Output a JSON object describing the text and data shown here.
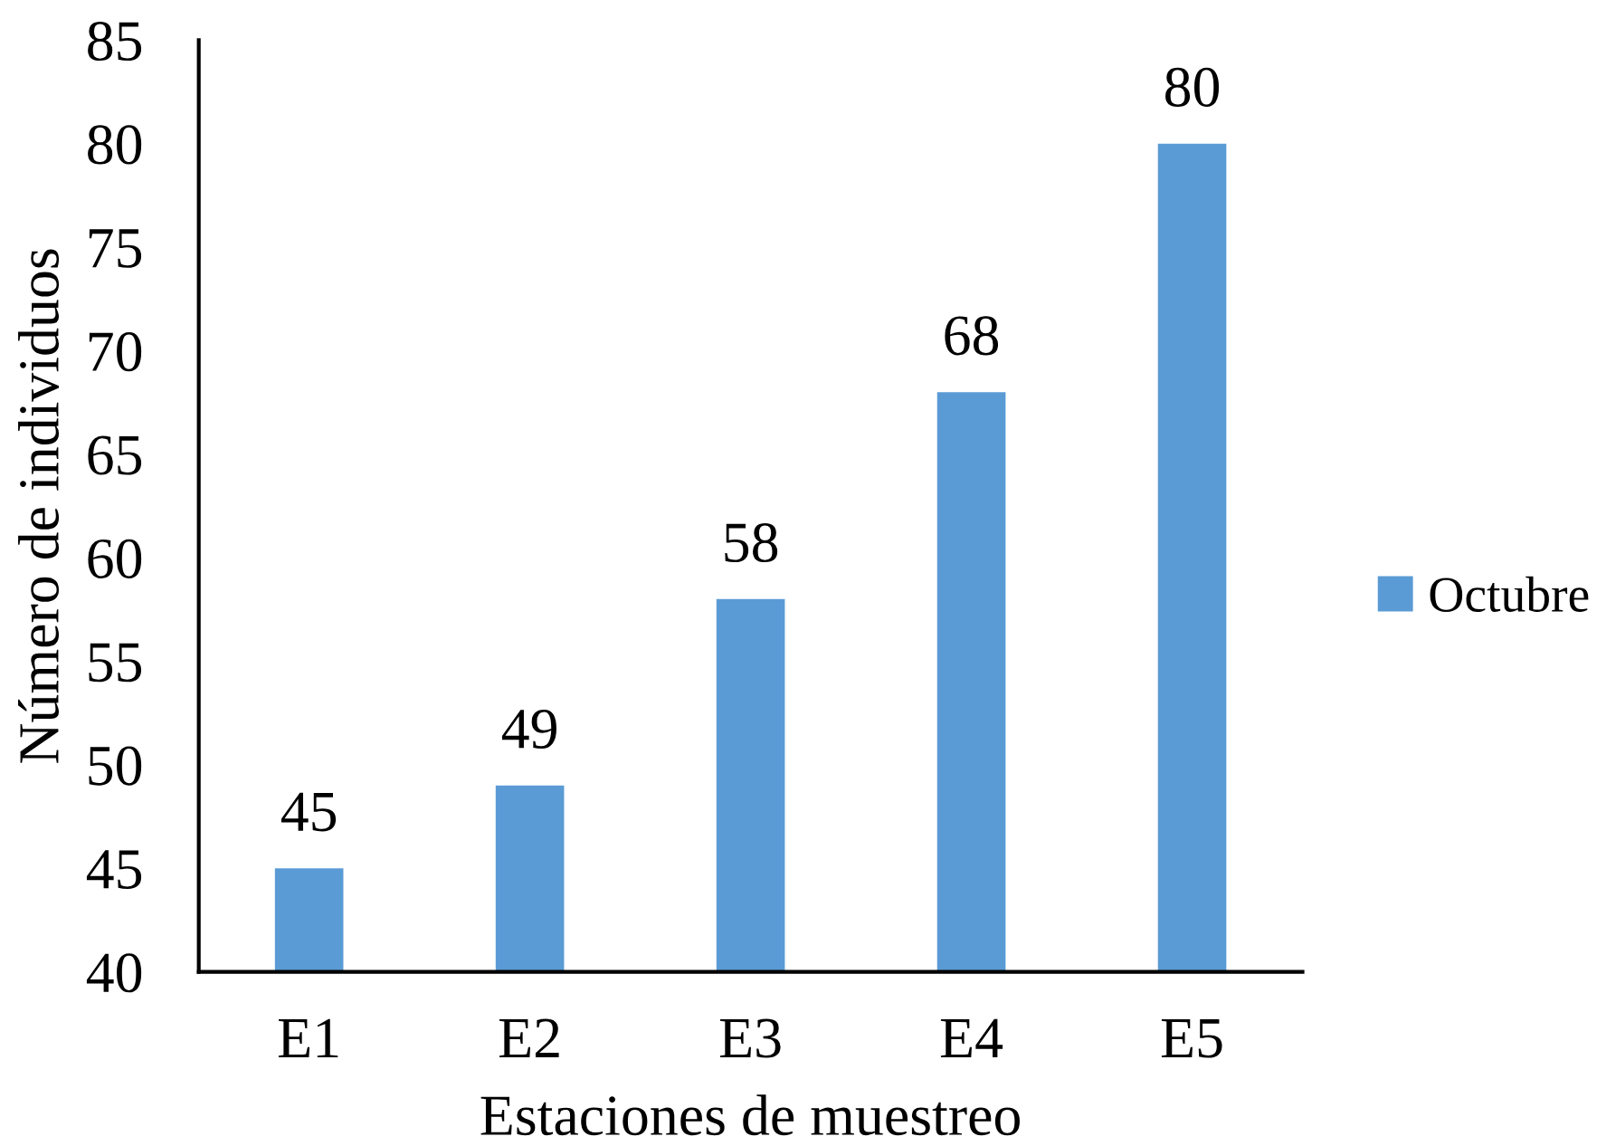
{
  "chart_data": {
    "type": "bar",
    "xlabel": "Estaciones de muestreo",
    "ylabel": "Número de individuos",
    "categories": [
      "E1",
      "E2",
      "E3",
      "E4",
      "E5"
    ],
    "series": [
      {
        "name": "Octubre",
        "color": "#5b9bd5",
        "values": [
          45,
          49,
          58,
          68,
          80
        ]
      }
    ],
    "ylim": [
      40,
      85
    ],
    "yticks": [
      40,
      45,
      50,
      55,
      60,
      65,
      70,
      75,
      80,
      85
    ],
    "data_labels": true,
    "grid": false,
    "legend": "right"
  }
}
